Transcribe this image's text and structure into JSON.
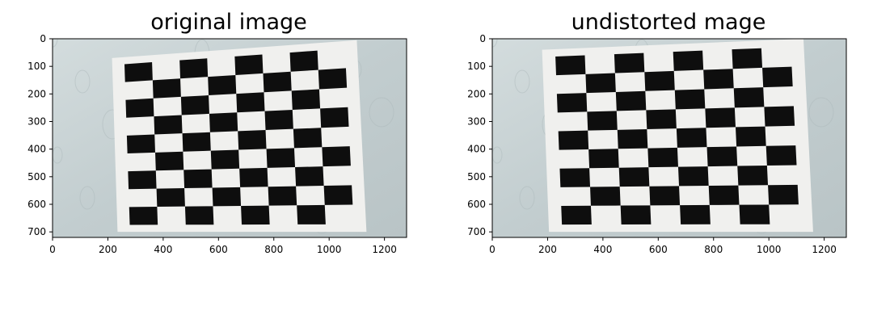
{
  "figure": {
    "background": "#ffffff"
  },
  "chart_data": [
    {
      "type": "image",
      "title": "original image",
      "xlim": [
        0,
        1280
      ],
      "ylim": [
        720,
        0
      ],
      "xticks": [
        0,
        200,
        400,
        600,
        800,
        1000,
        1200
      ],
      "yticks": [
        0,
        100,
        200,
        300,
        400,
        500,
        600,
        700
      ],
      "grid": false,
      "content": "chessboard-photo",
      "board_corners": [
        [
          215,
          70
        ],
        [
          1100,
          5
        ],
        [
          1135,
          700
        ],
        [
          235,
          700
        ]
      ],
      "rows": 9,
      "cols": 8,
      "colors": {
        "wall": "#c6d1d3",
        "board_light": "#f0f0ee",
        "board_dark": "#0e0e0e"
      }
    },
    {
      "type": "image",
      "title": "undistorted mage",
      "xlim": [
        0,
        1280
      ],
      "ylim": [
        720,
        0
      ],
      "xticks": [
        0,
        200,
        400,
        600,
        800,
        1000,
        1200
      ],
      "yticks": [
        0,
        100,
        200,
        300,
        400,
        500,
        600,
        700
      ],
      "grid": false,
      "content": "chessboard-photo",
      "board_corners": [
        [
          180,
          40
        ],
        [
          1125,
          0
        ],
        [
          1160,
          700
        ],
        [
          205,
          700
        ]
      ],
      "rows": 9,
      "cols": 8,
      "colors": {
        "wall": "#c6d1d3",
        "board_light": "#f0f0ee",
        "board_dark": "#0e0e0e"
      }
    }
  ]
}
